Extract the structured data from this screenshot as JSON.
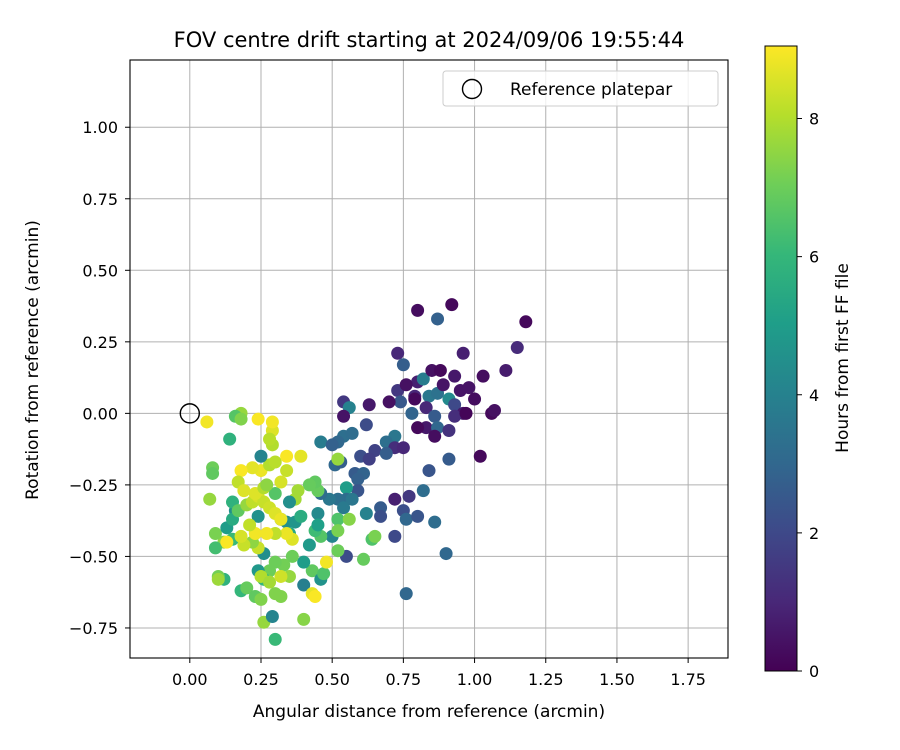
{
  "chart_data": {
    "type": "scatter",
    "title": "FOV centre drift starting at 2024/09/06 19:55:44",
    "xlabel": "Angular distance from reference (arcmin)",
    "ylabel": "Rotation from reference (arcmin)",
    "xlim": [
      -0.21,
      1.89
    ],
    "ylim": [
      -0.855,
      1.235
    ],
    "xticks": [
      0.0,
      0.25,
      0.5,
      0.75,
      1.0,
      1.25,
      1.5,
      1.75
    ],
    "xtick_labels": [
      "0.00",
      "0.25",
      "0.50",
      "0.75",
      "1.00",
      "1.25",
      "1.50",
      "1.75"
    ],
    "yticks": [
      -0.75,
      -0.5,
      -0.25,
      0.0,
      0.25,
      0.5,
      0.75,
      1.0
    ],
    "ytick_labels": [
      "−0.75",
      "−0.50",
      "−0.25",
      "0.00",
      "0.25",
      "0.50",
      "0.75",
      "1.00"
    ],
    "grid": true,
    "legend": {
      "placement": "upper right",
      "entries": [
        "Reference platepar"
      ]
    },
    "reference_point": {
      "x": 0.0,
      "y": 0.0,
      "label": "Reference platepar"
    },
    "colorbar": {
      "label": "Hours from first FF file",
      "colormap": "viridis",
      "range": [
        0,
        9.05
      ],
      "ticks": [
        0,
        2,
        4,
        6,
        8
      ],
      "tick_labels": [
        "0",
        "2",
        "4",
        "6",
        "8"
      ]
    },
    "columns": [
      "x",
      "y",
      "hours"
    ],
    "points": [
      [
        0.8,
        0.36,
        0.3
      ],
      [
        0.92,
        0.38,
        0.2
      ],
      [
        0.87,
        0.33,
        2.8
      ],
      [
        1.18,
        0.32,
        0.2
      ],
      [
        0.73,
        0.21,
        1.0
      ],
      [
        0.96,
        0.21,
        0.8
      ],
      [
        1.15,
        0.23,
        1.1
      ],
      [
        1.11,
        0.15,
        0.7
      ],
      [
        0.75,
        0.17,
        2.7
      ],
      [
        0.8,
        0.11,
        0.8
      ],
      [
        0.82,
        0.12,
        3.8
      ],
      [
        0.85,
        0.15,
        0.4
      ],
      [
        0.88,
        0.15,
        0.2
      ],
      [
        0.93,
        0.13,
        0.6
      ],
      [
        1.03,
        0.13,
        0.3
      ],
      [
        0.79,
        0.06,
        1.0
      ],
      [
        0.73,
        0.08,
        1.5
      ],
      [
        0.76,
        0.1,
        0.4
      ],
      [
        0.84,
        0.06,
        3.6
      ],
      [
        0.87,
        0.07,
        3.4
      ],
      [
        0.89,
        0.1,
        0.5
      ],
      [
        0.95,
        0.08,
        0.5
      ],
      [
        0.98,
        0.09,
        0.5
      ],
      [
        1.0,
        0.05,
        0.3
      ],
      [
        0.74,
        0.04,
        2.5
      ],
      [
        0.79,
        0.05,
        0.2
      ],
      [
        0.83,
        0.02,
        1.0
      ],
      [
        0.91,
        0.05,
        4.3
      ],
      [
        0.93,
        0.03,
        2.0
      ],
      [
        0.96,
        0.0,
        0.6
      ],
      [
        1.06,
        0.0,
        0.2
      ],
      [
        1.07,
        0.01,
        0.4
      ],
      [
        0.54,
        0.04,
        1.5
      ],
      [
        0.56,
        0.02,
        4.0
      ],
      [
        0.63,
        0.03,
        0.6
      ],
      [
        0.7,
        0.04,
        0.4
      ],
      [
        0.54,
        -0.01,
        0.5
      ],
      [
        0.78,
        0.0,
        2.9
      ],
      [
        0.86,
        -0.01,
        2.6
      ],
      [
        0.93,
        -0.01,
        1.2
      ],
      [
        0.97,
        0.0,
        0.1
      ],
      [
        0.83,
        -0.05,
        0.6
      ],
      [
        0.8,
        -0.05,
        0.2
      ],
      [
        0.87,
        -0.05,
        3.0
      ],
      [
        0.91,
        -0.06,
        1.3
      ],
      [
        0.86,
        -0.08,
        0.3
      ],
      [
        0.72,
        -0.08,
        3.6
      ],
      [
        0.69,
        -0.1,
        3.3
      ],
      [
        0.65,
        -0.13,
        1.8
      ],
      [
        0.72,
        -0.12,
        1.2
      ],
      [
        0.54,
        -0.08,
        3.3
      ],
      [
        0.57,
        -0.07,
        3.2
      ],
      [
        0.62,
        -0.04,
        2.1
      ],
      [
        0.52,
        -0.1,
        3.0
      ],
      [
        0.46,
        -0.1,
        3.8
      ],
      [
        0.5,
        -0.11,
        2.8
      ],
      [
        0.6,
        -0.15,
        2.2
      ],
      [
        0.63,
        -0.16,
        1.7
      ],
      [
        0.69,
        -0.14,
        2.7
      ],
      [
        0.75,
        -0.12,
        1.0
      ],
      [
        0.84,
        -0.2,
        2.4
      ],
      [
        0.91,
        -0.16,
        2.6
      ],
      [
        1.02,
        -0.15,
        0.2
      ],
      [
        0.51,
        -0.18,
        3.0
      ],
      [
        0.53,
        -0.17,
        2.7
      ],
      [
        0.58,
        -0.21,
        2.6
      ],
      [
        0.61,
        -0.21,
        2.9
      ],
      [
        0.59,
        -0.23,
        2.8
      ],
      [
        0.59,
        -0.27,
        2.4
      ],
      [
        0.55,
        -0.26,
        5.0
      ],
      [
        0.55,
        -0.3,
        3.2
      ],
      [
        0.52,
        -0.3,
        3.3
      ],
      [
        0.49,
        -0.3,
        3.6
      ],
      [
        0.46,
        -0.28,
        3.2
      ],
      [
        0.45,
        -0.35,
        4.3
      ],
      [
        0.54,
        -0.33,
        3.7
      ],
      [
        0.57,
        -0.3,
        3.6
      ],
      [
        0.62,
        -0.35,
        4.0
      ],
      [
        0.67,
        -0.33,
        2.6
      ],
      [
        0.67,
        -0.36,
        2.2
      ],
      [
        0.72,
        -0.3,
        0.8
      ],
      [
        0.75,
        -0.34,
        2.2
      ],
      [
        0.76,
        -0.37,
        3.0
      ],
      [
        0.8,
        -0.36,
        2.4
      ],
      [
        0.82,
        -0.27,
        3.2
      ],
      [
        0.77,
        -0.29,
        1.5
      ],
      [
        0.86,
        -0.38,
        3.2
      ],
      [
        0.72,
        -0.43,
        2.0
      ],
      [
        0.9,
        -0.49,
        3.0
      ],
      [
        0.76,
        -0.63,
        3.0
      ],
      [
        0.64,
        -0.44,
        6.5
      ],
      [
        0.61,
        -0.51,
        6.9
      ],
      [
        0.55,
        -0.5,
        2.1
      ],
      [
        0.52,
        -0.48,
        7.0
      ],
      [
        0.5,
        -0.43,
        4.1
      ],
      [
        0.46,
        -0.43,
        6.6
      ],
      [
        0.44,
        -0.41,
        6.2
      ],
      [
        0.45,
        -0.39,
        5.1
      ],
      [
        0.52,
        -0.37,
        6.5
      ],
      [
        0.52,
        -0.16,
        7.6
      ],
      [
        0.45,
        -0.27,
        6.9
      ],
      [
        0.44,
        -0.24,
        6.8
      ],
      [
        0.42,
        -0.25,
        6.9
      ],
      [
        0.38,
        -0.27,
        7.8
      ],
      [
        0.37,
        -0.3,
        7.8
      ],
      [
        0.35,
        -0.31,
        4.5
      ],
      [
        0.3,
        -0.28,
        6.6
      ],
      [
        0.32,
        -0.37,
        4.6
      ],
      [
        0.34,
        -0.38,
        4.5
      ],
      [
        0.37,
        -0.38,
        4.7
      ],
      [
        0.39,
        -0.36,
        5.6
      ],
      [
        0.35,
        -0.42,
        5.4
      ],
      [
        0.42,
        -0.46,
        4.9
      ],
      [
        0.43,
        -0.55,
        6.8
      ],
      [
        0.4,
        -0.52,
        5.0
      ],
      [
        0.36,
        -0.5,
        7.0
      ],
      [
        0.35,
        -0.57,
        7.6
      ],
      [
        0.33,
        -0.53,
        7.1
      ],
      [
        0.3,
        -0.52,
        7.0
      ],
      [
        0.28,
        -0.55,
        7.0
      ],
      [
        0.26,
        -0.49,
        4.5
      ],
      [
        0.24,
        -0.47,
        8.3
      ],
      [
        0.22,
        -0.45,
        7.5
      ],
      [
        0.19,
        -0.46,
        8.3
      ],
      [
        0.15,
        -0.44,
        6.1
      ],
      [
        0.12,
        -0.45,
        7.5
      ],
      [
        0.09,
        -0.47,
        6.3
      ],
      [
        0.09,
        -0.42,
        7.2
      ],
      [
        0.12,
        -0.58,
        5.8
      ],
      [
        0.1,
        -0.57,
        7.1
      ],
      [
        0.1,
        -0.58,
        7.7
      ],
      [
        0.18,
        -0.62,
        6.0
      ],
      [
        0.2,
        -0.61,
        6.9
      ],
      [
        0.23,
        -0.64,
        6.8
      ],
      [
        0.24,
        -0.55,
        4.8
      ],
      [
        0.26,
        -0.58,
        6.0
      ],
      [
        0.25,
        -0.57,
        8.0
      ],
      [
        0.28,
        -0.59,
        7.8
      ],
      [
        0.3,
        -0.63,
        7.3
      ],
      [
        0.32,
        -0.64,
        7.3
      ],
      [
        0.25,
        -0.65,
        7.3
      ],
      [
        0.26,
        -0.73,
        7.6
      ],
      [
        0.29,
        -0.71,
        4.1
      ],
      [
        0.3,
        -0.79,
        6.1
      ],
      [
        0.4,
        -0.6,
        3.9
      ],
      [
        0.43,
        -0.63,
        8.7
      ],
      [
        0.4,
        -0.72,
        7.4
      ],
      [
        0.46,
        -0.58,
        4.6
      ],
      [
        0.47,
        -0.56,
        6.5
      ],
      [
        0.32,
        -0.57,
        8.4
      ],
      [
        0.36,
        -0.44,
        8.6
      ],
      [
        0.34,
        -0.42,
        8.8
      ],
      [
        0.3,
        -0.42,
        8.2
      ],
      [
        0.27,
        -0.42,
        8.9
      ],
      [
        0.23,
        -0.42,
        8.9
      ],
      [
        0.18,
        -0.43,
        8.5
      ],
      [
        0.13,
        -0.45,
        9.0
      ],
      [
        0.16,
        -0.34,
        4.5
      ],
      [
        0.15,
        -0.31,
        5.8
      ],
      [
        0.13,
        -0.4,
        5.0
      ],
      [
        0.15,
        -0.37,
        5.5
      ],
      [
        0.17,
        -0.34,
        6.8
      ],
      [
        0.2,
        -0.32,
        7.6
      ],
      [
        0.22,
        -0.31,
        8.2
      ],
      [
        0.24,
        -0.29,
        8.5
      ],
      [
        0.26,
        -0.31,
        8.3
      ],
      [
        0.28,
        -0.33,
        8.4
      ],
      [
        0.3,
        -0.35,
        8.6
      ],
      [
        0.32,
        -0.37,
        8.8
      ],
      [
        0.24,
        -0.36,
        4.6
      ],
      [
        0.21,
        -0.39,
        8.2
      ],
      [
        0.23,
        -0.28,
        8.6
      ],
      [
        0.26,
        -0.26,
        8.0
      ],
      [
        0.27,
        -0.25,
        7.5
      ],
      [
        0.25,
        -0.2,
        8.8
      ],
      [
        0.22,
        -0.19,
        8.7
      ],
      [
        0.18,
        -0.2,
        9.0
      ],
      [
        0.17,
        -0.24,
        8.2
      ],
      [
        0.19,
        -0.27,
        8.6
      ],
      [
        0.28,
        -0.18,
        8.0
      ],
      [
        0.3,
        -0.17,
        8.1
      ],
      [
        0.34,
        -0.15,
        9.0
      ],
      [
        0.39,
        -0.15,
        8.7
      ],
      [
        0.34,
        -0.2,
        8.3
      ],
      [
        0.32,
        -0.24,
        8.5
      ],
      [
        0.25,
        -0.15,
        4.1
      ],
      [
        0.29,
        -0.11,
        8.0
      ],
      [
        0.29,
        -0.06,
        8.6
      ],
      [
        0.28,
        -0.09,
        8.1
      ],
      [
        0.29,
        -0.03,
        8.9
      ],
      [
        0.24,
        -0.02,
        9.0
      ],
      [
        0.18,
        0.0,
        7.6
      ],
      [
        0.16,
        -0.01,
        6.6
      ],
      [
        0.18,
        -0.02,
        7.3
      ],
      [
        0.14,
        -0.09,
        5.8
      ],
      [
        0.08,
        -0.19,
        7.0
      ],
      [
        0.08,
        -0.21,
        6.8
      ],
      [
        0.07,
        -0.3,
        7.6
      ],
      [
        0.06,
        -0.03,
        8.9
      ],
      [
        0.44,
        -0.64,
        9.0
      ],
      [
        0.48,
        -0.52,
        8.9
      ],
      [
        0.52,
        -0.41,
        7.2
      ],
      [
        0.56,
        -0.37,
        7.4
      ],
      [
        0.65,
        -0.43,
        7.2
      ]
    ]
  }
}
